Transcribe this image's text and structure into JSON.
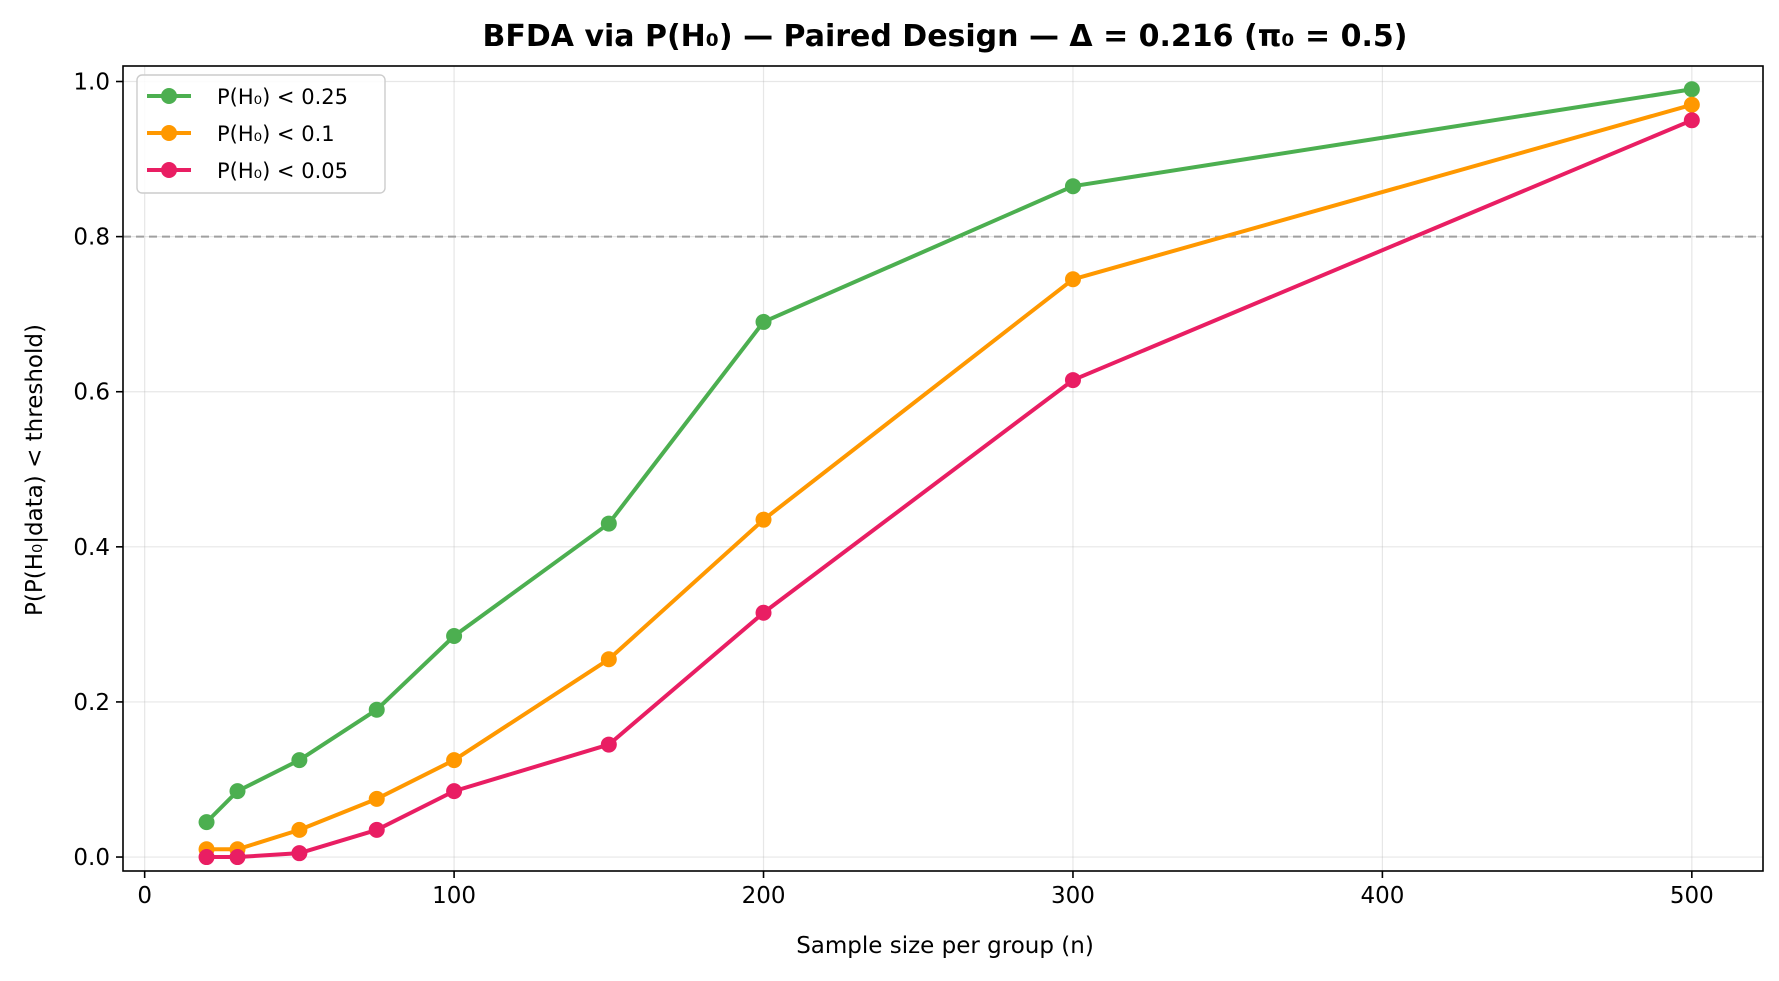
{
  "chart_data": {
    "type": "line",
    "title": "BFDA via P(H₀) — Paired Design — Δ = 0.216 (π₀ = 0.5)",
    "xlabel": "Sample size per group (n)",
    "ylabel": "P(P(H₀|data) < threshold)",
    "xlim": [
      -7,
      523
    ],
    "ylim": [
      -0.018,
      1.02
    ],
    "xticks": [
      0,
      100,
      200,
      300,
      400,
      500
    ],
    "yticks": [
      0.0,
      0.2,
      0.4,
      0.6,
      0.8,
      1.0
    ],
    "xtick_labels": [
      "0",
      "100",
      "200",
      "300",
      "400",
      "500"
    ],
    "ytick_labels": [
      "0.0",
      "0.2",
      "0.4",
      "0.6",
      "0.8",
      "1.0"
    ],
    "grid": true,
    "reference_line": {
      "y": 0.8,
      "style": "dashed",
      "color": "#a0a0a0"
    },
    "legend_placement": "top-left",
    "x": [
      20,
      30,
      50,
      75,
      100,
      150,
      200,
      300,
      500
    ],
    "series": [
      {
        "name": "P(H₀) < 0.25",
        "color": "#4caf50",
        "values": [
          0.045,
          0.085,
          0.125,
          0.19,
          0.285,
          0.43,
          0.69,
          0.865,
          0.99
        ]
      },
      {
        "name": "P(H₀) < 0.1",
        "color": "#ff9800",
        "values": [
          0.01,
          0.01,
          0.035,
          0.075,
          0.125,
          0.255,
          0.435,
          0.745,
          0.97
        ]
      },
      {
        "name": "P(H₀) < 0.05",
        "color": "#e91e63",
        "values": [
          0.0,
          0.0,
          0.005,
          0.035,
          0.085,
          0.145,
          0.315,
          0.615,
          0.95
        ]
      }
    ]
  }
}
